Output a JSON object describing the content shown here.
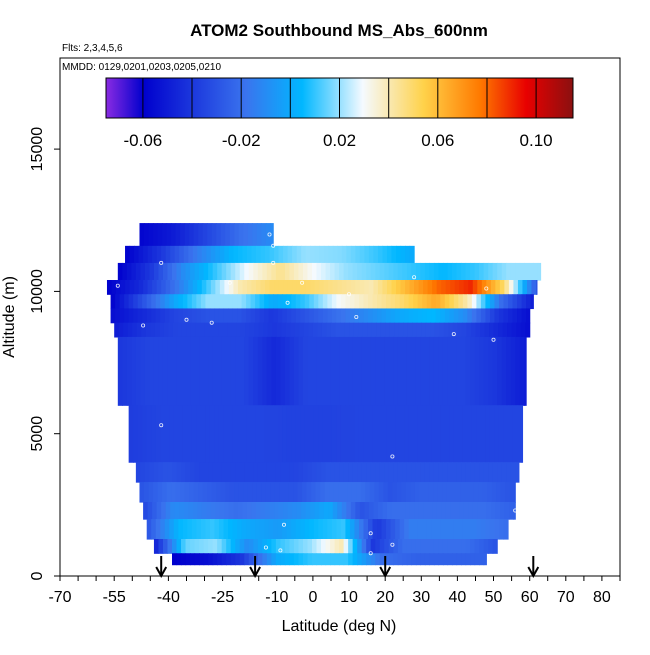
{
  "chart_data": {
    "type": "heatmap",
    "title": "ATOM2 Southbound MS_Abs_600nm",
    "subtitle_flights": "Flts: 2,3,4,5,6",
    "dates_label": "MMDD: 0129,0201,0203,0205,0210",
    "xlabel": "Latitude (deg N)",
    "ylabel": "Altitude (m)",
    "xlim": [
      -70,
      85
    ],
    "ylim": [
      0,
      18200
    ],
    "x_ticks": [
      -70,
      -55,
      -40,
      -25,
      -10,
      0,
      10,
      20,
      30,
      40,
      50,
      60,
      70,
      80
    ],
    "x_tick_labels": [
      "-70",
      "-55",
      "-40",
      "-25",
      "-10",
      "0",
      "10",
      "20",
      "30",
      "40",
      "50",
      "60",
      "70",
      "80"
    ],
    "y_ticks": [
      0,
      5000,
      10000,
      15000
    ],
    "y_tick_labels": [
      "0",
      "5000",
      "10000",
      "15000"
    ],
    "colorbar": {
      "range": [
        -0.075,
        0.115
      ],
      "colors": [
        "#8a2be2",
        "#0000cd",
        "#3a74ee",
        "#00b7ff",
        "#f5faff",
        "#ffd24a",
        "#ff7a00",
        "#e80000",
        "#8b1010"
      ],
      "ticks": [
        -0.06,
        -0.02,
        0.02,
        0.06,
        0.1
      ],
      "tick_labels": [
        "-0.06",
        "-0.02",
        "0.02",
        "0.06",
        "0.10"
      ]
    },
    "arrow_latitudes": [
      -42,
      -16,
      20,
      61
    ],
    "bands": [
      {
        "alt_bottom": 11600,
        "alt_top": 12400,
        "lat_start": -48,
        "lat_end": -11,
        "values": [
          -0.058,
          -0.05,
          -0.035,
          -0.02,
          -0.01
        ]
      },
      {
        "alt_bottom": 11000,
        "alt_top": 11600,
        "lat_start": -52,
        "lat_end": 28,
        "values": [
          -0.06,
          -0.04,
          -0.015,
          0.005,
          0.01,
          0.02,
          0.018,
          0.01,
          0.0
        ]
      },
      {
        "alt_bottom": 10400,
        "alt_top": 11000,
        "lat_start": -54,
        "lat_end": 63,
        "values": [
          -0.06,
          -0.04,
          -0.01,
          0.01,
          0.03,
          0.045,
          0.03,
          0.02,
          0.015,
          0.01,
          0.005,
          0.01,
          0.02,
          0.02
        ]
      },
      {
        "alt_bottom": 9900,
        "alt_top": 10400,
        "lat_start": -57,
        "lat_end": 62,
        "values": [
          -0.06,
          -0.045,
          -0.02,
          0.01,
          0.04,
          0.05,
          0.05,
          0.045,
          0.04,
          0.06,
          0.08,
          0.09,
          0.05,
          -0.03
        ]
      },
      {
        "alt_bottom": 9400,
        "alt_top": 9900,
        "lat_start": -56,
        "lat_end": 61,
        "values": [
          -0.06,
          -0.03,
          0.0,
          0.02,
          0.02,
          0.0,
          0.01,
          0.03,
          0.04,
          0.05,
          0.065,
          0.04,
          -0.02,
          -0.05
        ]
      },
      {
        "alt_bottom": 8900,
        "alt_top": 9400,
        "lat_start": -56,
        "lat_end": 60,
        "values": [
          -0.055,
          -0.045,
          -0.035,
          -0.03,
          -0.03,
          -0.04,
          -0.03,
          -0.02,
          -0.01,
          0.0,
          0.005,
          -0.01,
          -0.04,
          -0.055
        ]
      },
      {
        "alt_bottom": 8400,
        "alt_top": 8900,
        "lat_start": -55,
        "lat_end": 60,
        "values": [
          -0.05,
          -0.04,
          -0.035,
          -0.035,
          -0.035,
          -0.04,
          -0.035,
          -0.03,
          -0.03,
          -0.03,
          -0.03,
          -0.035,
          -0.045,
          -0.055
        ]
      },
      {
        "alt_bottom": 6000,
        "alt_top": 8400,
        "lat_start": -54,
        "lat_end": 59,
        "values": [
          -0.04,
          -0.035,
          -0.035,
          -0.035,
          -0.035,
          -0.045,
          -0.035,
          -0.035,
          -0.035,
          -0.035,
          -0.035,
          -0.035,
          -0.04,
          -0.05
        ]
      },
      {
        "alt_bottom": 4000,
        "alt_top": 6000,
        "lat_start": -51,
        "lat_end": 58,
        "values": [
          -0.038,
          -0.035,
          -0.035,
          -0.035,
          -0.035,
          -0.036,
          -0.036,
          -0.035,
          -0.035,
          -0.035,
          -0.035,
          -0.035,
          -0.035
        ]
      },
      {
        "alt_bottom": 3300,
        "alt_top": 4000,
        "lat_start": -49,
        "lat_end": 57,
        "values": [
          -0.035,
          -0.03,
          -0.035,
          -0.035,
          -0.035,
          -0.035,
          -0.03,
          -0.03,
          -0.03,
          -0.03,
          -0.03,
          -0.03,
          -0.03
        ]
      },
      {
        "alt_bottom": 2600,
        "alt_top": 3300,
        "lat_start": -48,
        "lat_end": 56,
        "values": [
          -0.03,
          -0.02,
          -0.025,
          -0.03,
          -0.03,
          -0.03,
          -0.02,
          -0.02,
          -0.03,
          -0.025,
          -0.025,
          -0.025,
          -0.03
        ]
      },
      {
        "alt_bottom": 2000,
        "alt_top": 2600,
        "lat_start": -47,
        "lat_end": 56,
        "values": [
          -0.035,
          -0.01,
          -0.015,
          -0.02,
          -0.015,
          -0.01,
          0.0,
          -0.03,
          -0.02,
          -0.02,
          -0.02,
          -0.02,
          -0.025
        ]
      },
      {
        "alt_bottom": 1300,
        "alt_top": 2000,
        "lat_start": -46,
        "lat_end": 54,
        "values": [
          -0.03,
          0.005,
          0.01,
          0.0,
          -0.005,
          0.005,
          0.01,
          -0.04,
          -0.015,
          -0.015,
          -0.015,
          -0.02
        ]
      },
      {
        "alt_bottom": 800,
        "alt_top": 1300,
        "lat_start": -44,
        "lat_end": 51,
        "values": [
          -0.05,
          0.015,
          0.02,
          -0.01,
          0.01,
          0.02,
          0.04,
          -0.04,
          -0.02,
          -0.02,
          -0.02,
          -0.03
        ]
      },
      {
        "alt_bottom": 400,
        "alt_top": 800,
        "lat_start": -39,
        "lat_end": 48,
        "values": [
          -0.06,
          -0.055,
          -0.04,
          0.0,
          0.01,
          0.01,
          -0.02,
          -0.025,
          -0.025,
          -0.025
        ]
      }
    ],
    "measurement_points": [
      [
        -49,
        12100
      ],
      [
        -12,
        12000
      ],
      [
        -11,
        11600
      ],
      [
        -42,
        11000
      ],
      [
        -11,
        11000
      ],
      [
        55,
        11200
      ],
      [
        -66,
        10050
      ],
      [
        -54,
        10200
      ],
      [
        -23,
        10300
      ],
      [
        -3,
        10300
      ],
      [
        28,
        10500
      ],
      [
        48,
        10100
      ],
      [
        -62,
        9650
      ],
      [
        -7,
        9600
      ],
      [
        10,
        9900
      ],
      [
        -35,
        9000
      ],
      [
        -28,
        8900
      ],
      [
        -47,
        8800
      ],
      [
        -66,
        8800
      ],
      [
        12,
        9100
      ],
      [
        39,
        8500
      ],
      [
        50,
        8300
      ],
      [
        -60,
        7200
      ],
      [
        -42,
        5300
      ],
      [
        22,
        4200
      ],
      [
        56,
        2300
      ],
      [
        -8,
        1800
      ],
      [
        16,
        1500
      ],
      [
        22,
        1100
      ],
      [
        -9,
        900
      ],
      [
        -13,
        1000
      ],
      [
        16,
        800
      ]
    ]
  }
}
